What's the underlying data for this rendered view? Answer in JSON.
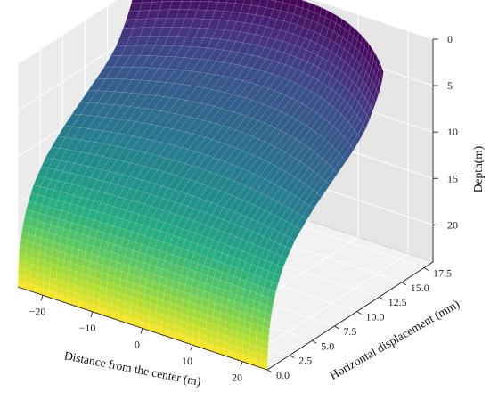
{
  "chart_data": {
    "type": "surface",
    "title": "",
    "colormap": "viridis",
    "grid": true,
    "x": {
      "label": "Distance from the center (m)",
      "range": [
        -25,
        25
      ],
      "ticks": [
        -20,
        -10,
        0,
        10,
        20
      ],
      "tick_labels": [
        "−20",
        "−10",
        "0",
        "10",
        "20"
      ]
    },
    "y": {
      "label": "Horizontal displacement (mm)",
      "range": [
        0,
        18.5
      ],
      "ticks": [
        0.0,
        2.5,
        5.0,
        7.5,
        10.0,
        12.5,
        15.0,
        17.5
      ],
      "tick_labels": [
        "0.0",
        "2.5",
        "5.0",
        "7.5",
        "10.0",
        "12.5",
        "15.0",
        "17.5"
      ]
    },
    "z": {
      "label": "Depth(m)",
      "range": [
        0,
        24
      ],
      "inverted": true,
      "ticks": [
        0,
        5,
        10,
        15,
        20
      ],
      "tick_labels": [
        "0",
        "5",
        "10",
        "15",
        "20"
      ]
    },
    "profile": {
      "depth": [
        0,
        1,
        2,
        3,
        4,
        5,
        6,
        7,
        8,
        10,
        12,
        14,
        16,
        18,
        20,
        22,
        24
      ],
      "displacement_mm": [
        18.0,
        17.8,
        17.3,
        16.7,
        16.0,
        15.2,
        14.0,
        12.3,
        10.5,
        7.0,
        4.3,
        2.5,
        1.4,
        0.7,
        0.3,
        0.1,
        0.0
      ],
      "center_factor": 1.0,
      "edge_factor": 0.72
    }
  }
}
